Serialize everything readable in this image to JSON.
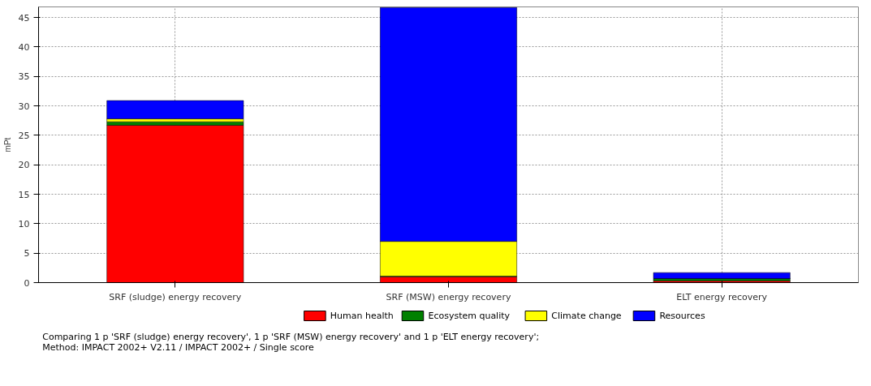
{
  "chart_data": {
    "type": "bar",
    "stacked": true,
    "ylabel": "mPt",
    "categories": [
      "SRF (sludge) energy recovery",
      "SRF (MSW) energy recovery",
      "ELT energy recovery"
    ],
    "series": [
      {
        "name": "Human health",
        "color": "#ff0000",
        "values": [
          26.7,
          1.0,
          0.3
        ]
      },
      {
        "name": "Ecosystem quality",
        "color": "#008000",
        "values": [
          0.6,
          0.1,
          0.4
        ]
      },
      {
        "name": "Climate change",
        "color": "#ffff00",
        "values": [
          0.5,
          5.9,
          null
        ]
      },
      {
        "name": "Resources",
        "color": "#0000ff",
        "values": [
          3.1,
          39.7,
          1.0
        ]
      }
    ],
    "ylim": [
      0,
      46.8
    ],
    "yticks": [
      0,
      5,
      10,
      15,
      20,
      25,
      30,
      35,
      40,
      45
    ],
    "grid": true,
    "legend": "bottom",
    "annotations": [
      "Comparing 1 p 'SRF (sludge) energy recovery', 1 p 'SRF (MSW) energy recovery' and 1 p 'ELT energy recovery';",
      "Method: IMPACT 2002+ V2.11 / IMPACT 2002+ / Single score"
    ]
  }
}
